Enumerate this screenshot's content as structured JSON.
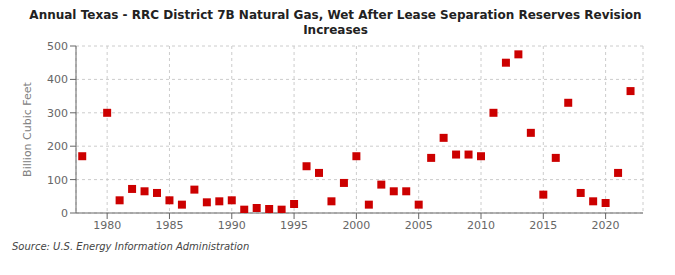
{
  "chart_data": {
    "type": "scatter",
    "title": "Annual Texas - RRC District 7B Natural Gas, Wet After Lease Separation Reserves Revision\nIncreases",
    "y_label": "Billion Cubic Feet",
    "annotations": [
      "Source: U.S. Energy Information Administration"
    ],
    "color": "#cc0000",
    "marker": "square",
    "grid": true,
    "xlim": [
      1977.5,
      2023
    ],
    "ylim": [
      0,
      500
    ],
    "xticks": [
      1980,
      1985,
      1990,
      1995,
      2000,
      2005,
      2010,
      2015,
      2020
    ],
    "yticks": [
      0,
      100,
      200,
      300,
      400,
      500
    ],
    "x": [
      1978,
      1980,
      1981,
      1982,
      1983,
      1984,
      1985,
      1986,
      1987,
      1988,
      1989,
      1990,
      1991,
      1992,
      1993,
      1994,
      1995,
      1996,
      1997,
      1998,
      1999,
      2000,
      2001,
      2002,
      2003,
      2004,
      2005,
      2006,
      2007,
      2008,
      2009,
      2010,
      2011,
      2012,
      2013,
      2014,
      2015,
      2016,
      2017,
      2018,
      2019,
      2020,
      2021,
      2022
    ],
    "values": [
      170,
      300,
      38,
      72,
      65,
      60,
      38,
      25,
      70,
      32,
      35,
      38,
      10,
      15,
      12,
      10,
      27,
      140,
      120,
      35,
      90,
      170,
      25,
      85,
      65,
      65,
      25,
      165,
      225,
      175,
      175,
      170,
      300,
      450,
      475,
      240,
      55,
      165,
      330,
      60,
      35,
      30,
      120,
      365
    ]
  }
}
